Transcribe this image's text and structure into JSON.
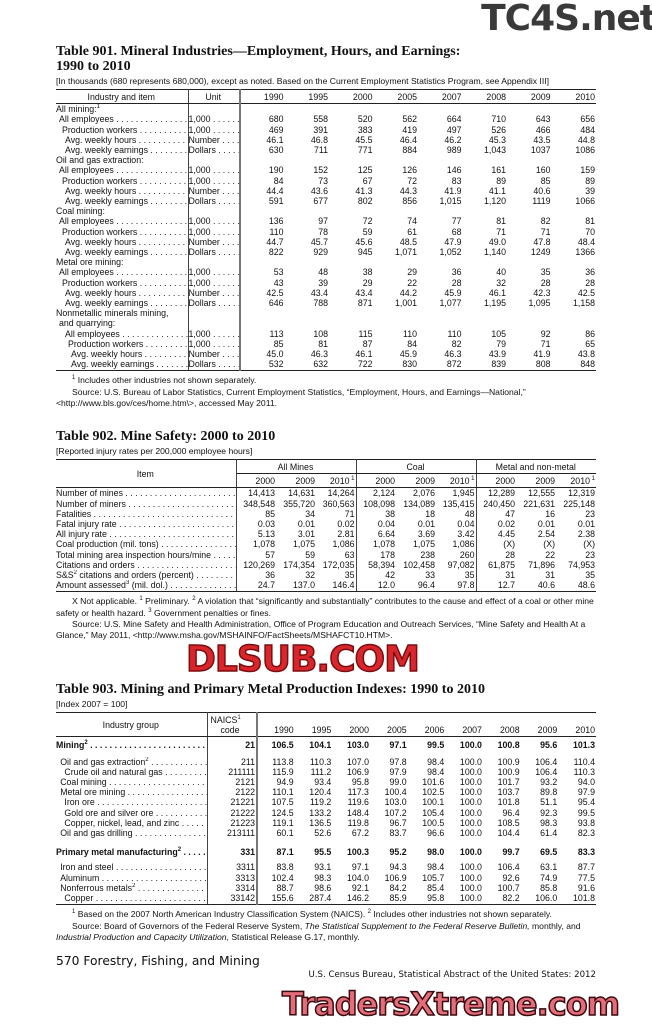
{
  "watermarks": {
    "top": "TC4S.net",
    "middle": "DLSUB.COM",
    "bottom": "TradersXtreme.com"
  },
  "table901": {
    "title_line1": "Table 901. Mineral Industries—Employment, Hours, and Earnings:",
    "title_line2": "1990 to 2010",
    "note": "[In thousands (680 represents 680,000), except as noted. Based on the Current Employment Statistics Program, see Appendix III]",
    "headers": {
      "item": "Industry and item",
      "unit": "Unit",
      "years": [
        "1990",
        "1995",
        "2000",
        "2005",
        "2007",
        "2008",
        "2009",
        "2010"
      ]
    },
    "rows": [
      {
        "label": "All mining:",
        "sup": "1",
        "level": 0
      },
      {
        "label": "All employees",
        "unit": "1,000",
        "level": 1,
        "values": [
          "680",
          "558",
          "520",
          "562",
          "664",
          "710",
          "643",
          "656"
        ]
      },
      {
        "label": "Production workers",
        "unit": "1,000",
        "level": 2,
        "values": [
          "469",
          "391",
          "383",
          "419",
          "497",
          "526",
          "466",
          "484"
        ]
      },
      {
        "label": "Avg. weekly hours",
        "unit": "Number",
        "level": 3,
        "values": [
          "46.1",
          "46.8",
          "45.5",
          "46.4",
          "46.2",
          "45.3",
          "43.5",
          "44.8"
        ]
      },
      {
        "label": "Avg. weekly earnings",
        "unit": "Dollars",
        "level": 3,
        "values": [
          "630",
          "711",
          "771",
          "884",
          "989",
          "1,043",
          "1037",
          "1086"
        ]
      },
      {
        "label": "Oil and gas extraction:",
        "level": 0
      },
      {
        "label": "All employees",
        "unit": "1,000",
        "level": 1,
        "values": [
          "190",
          "152",
          "125",
          "126",
          "146",
          "161",
          "160",
          "159"
        ]
      },
      {
        "label": "Production workers",
        "unit": "1,000",
        "level": 2,
        "values": [
          "84",
          "73",
          "67",
          "72",
          "83",
          "89",
          "85",
          "89"
        ]
      },
      {
        "label": "Avg. weekly hours",
        "unit": "Number",
        "level": 3,
        "values": [
          "44.4",
          "43.6",
          "41.3",
          "44.3",
          "41.9",
          "41.1",
          "40.6",
          "39"
        ]
      },
      {
        "label": "Avg. weekly earnings",
        "unit": "Dollars",
        "level": 3,
        "values": [
          "591",
          "677",
          "802",
          "856",
          "1,015",
          "1,120",
          "1119",
          "1066"
        ]
      },
      {
        "label": "Coal mining:",
        "level": 0
      },
      {
        "label": "All employees",
        "unit": "1,000",
        "level": 1,
        "values": [
          "136",
          "97",
          "72",
          "74",
          "77",
          "81",
          "82",
          "81"
        ]
      },
      {
        "label": "Production workers",
        "unit": "1,000",
        "level": 2,
        "values": [
          "110",
          "78",
          "59",
          "61",
          "68",
          "71",
          "71",
          "70"
        ]
      },
      {
        "label": "Avg. weekly hours",
        "unit": "Number",
        "level": 3,
        "values": [
          "44.7",
          "45.7",
          "45.6",
          "48.5",
          "47.9",
          "49.0",
          "47.8",
          "48.4"
        ]
      },
      {
        "label": "Avg. weekly earnings",
        "unit": "Dollars",
        "level": 3,
        "values": [
          "822",
          "929",
          "945",
          "1,071",
          "1,052",
          "1,140",
          "1249",
          "1366"
        ]
      },
      {
        "label": "Metal ore mining:",
        "level": 0
      },
      {
        "label": "All employees",
        "unit": "1,000",
        "level": 1,
        "values": [
          "53",
          "48",
          "38",
          "29",
          "36",
          "40",
          "35",
          "36"
        ]
      },
      {
        "label": "Production workers",
        "unit": "1,000",
        "level": 2,
        "values": [
          "43",
          "39",
          "29",
          "22",
          "28",
          "32",
          "28",
          "28"
        ]
      },
      {
        "label": "Avg. weekly hours",
        "unit": "Number",
        "level": 3,
        "values": [
          "42.5",
          "43.4",
          "43.4",
          "44.2",
          "45.9",
          "46.1",
          "42.3",
          "42.5"
        ]
      },
      {
        "label": "Avg. weekly earnings",
        "unit": "Dollars",
        "level": 3,
        "values": [
          "646",
          "788",
          "871",
          "1,001",
          "1,077",
          "1,195",
          "1,095",
          "1,158"
        ]
      },
      {
        "label": "Nonmetallic minerals mining,",
        "level": 0
      },
      {
        "label": "and quarrying:",
        "level": 1
      },
      {
        "label": "All employees",
        "unit": "1,000",
        "level": 3,
        "values": [
          "113",
          "108",
          "115",
          "110",
          "110",
          "105",
          "92",
          "86"
        ]
      },
      {
        "label": "Production workers",
        "unit": "1,000",
        "level": 4,
        "values": [
          "85",
          "81",
          "87",
          "84",
          "82",
          "79",
          "71",
          "65"
        ]
      },
      {
        "label": "Avg. weekly hours",
        "unit": "Number",
        "level": 5,
        "values": [
          "45.0",
          "46.3",
          "46.1",
          "45.9",
          "46.3",
          "43.9",
          "41.9",
          "43.8"
        ]
      },
      {
        "label": "Avg. weekly earnings",
        "unit": "Dollars",
        "level": 5,
        "values": [
          "532",
          "632",
          "722",
          "830",
          "872",
          "839",
          "808",
          "848"
        ]
      }
    ],
    "footnote1": "Includes other industries not shown separately.",
    "footnote1_sup": "1",
    "source": "Source: U.S. Bureau of Labor Statistics, Current Employment Statistics, “Employment, Hours, and Earnings—National,” <http://www.bls.gov/ces/home.htm\\>, accessed May 2011."
  },
  "table902": {
    "title": "Table 902. Mine Safety: 2000 to 2010",
    "note": "[Reported injury rates per 200,000 employee hours]",
    "headers": {
      "item": "Item",
      "groups": [
        "All Mines",
        "Coal",
        "Metal and non-metal"
      ],
      "years": [
        "2000",
        "2009",
        "2010"
      ],
      "year_sup": "1"
    },
    "rows": [
      {
        "label": "Number of mines",
        "values": [
          "14,413",
          "14,631",
          "14,264",
          "2,124",
          "2,076",
          "1,945",
          "12,289",
          "12,555",
          "12,319"
        ]
      },
      {
        "label": "Number of miners",
        "values": [
          "348,548",
          "355,720",
          "360,563",
          "108,098",
          "134,089",
          "135,415",
          "240,450",
          "221,631",
          "225,148"
        ]
      },
      {
        "label": "Fatalities",
        "values": [
          "85",
          "34",
          "71",
          "38",
          "18",
          "48",
          "47",
          "16",
          "23"
        ]
      },
      {
        "label": "Fatal injury rate",
        "values": [
          "0.03",
          "0.01",
          "0.02",
          "0.04",
          "0.01",
          "0.04",
          "0.02",
          "0.01",
          "0.01"
        ]
      },
      {
        "label": "All injury rate",
        "values": [
          "5.13",
          "3.01",
          "2.81",
          "6.64",
          "3.69",
          "3.42",
          "4.45",
          "2.54",
          "2.38"
        ]
      },
      {
        "label": "Coal production (mil. tons)",
        "values": [
          "1,078",
          "1,075",
          "1,086",
          "1,078",
          "1,075",
          "1,086",
          "(X)",
          "(X)",
          "(X)"
        ]
      },
      {
        "label": "Total mining area inspection hours/mine",
        "values": [
          "57",
          "59",
          "63",
          "178",
          "238",
          "260",
          "28",
          "22",
          "23"
        ]
      },
      {
        "label": "Citations and orders",
        "values": [
          "120,269",
          "174,354",
          "172,035",
          "58,394",
          "102,458",
          "97,082",
          "61,875",
          "71,896",
          "74,953"
        ]
      },
      {
        "label": "S&S",
        "sup": "2",
        "label_rest": " citations and orders (percent)",
        "values": [
          "36",
          "32",
          "35",
          "42",
          "33",
          "35",
          "31",
          "31",
          "35"
        ]
      },
      {
        "label": "Amount assessed",
        "sup": "3",
        "label_rest": " (mil. dol.)",
        "values": [
          "24.7",
          "137.0",
          "146.4",
          "12.0",
          "96.4",
          "97.8",
          "12.7",
          "40.6",
          "48.6"
        ]
      }
    ],
    "footnote_a": "X Not applicable.",
    "footnote_1": "Preliminary.",
    "footnote_2": "A violation that “significantly and substantially” contributes to the cause and effect of a coal or other mine safety or health hazard.",
    "footnote_3": "Government penalties or fines.",
    "source": "Source: U.S. Mine Safety and Health Administration, Office of Program Education and Outreach Services, “Mine Safety and Health At a Glance,” May 2011, <http://www.msha.gov/MSHAINFO/FactSheets/MSHAFCT10.HTM>."
  },
  "table903": {
    "title": "Table 903. Mining and Primary Metal Production Indexes: 1990 to 2010",
    "note": "[Index 2007 = 100]",
    "headers": {
      "item": "Industry group",
      "code_line1": "NAICS",
      "code_sup": "1",
      "code_line2": "code",
      "years": [
        "1990",
        "1995",
        "2000",
        "2005",
        "2006",
        "2007",
        "2008",
        "2009",
        "2010"
      ]
    },
    "rows": [
      {
        "label": "Mining",
        "sup": "2",
        "code": "21",
        "bold": true,
        "level": 0,
        "values": [
          "106.5",
          "104.1",
          "103.0",
          "97.1",
          "99.5",
          "100.0",
          "100.8",
          "95.6",
          "101.3"
        ]
      },
      {
        "label": "Oil and gas extraction",
        "sup": "2",
        "code": "211",
        "level": 1,
        "values": [
          "113.8",
          "110.3",
          "107.0",
          "97.8",
          "98.4",
          "100.0",
          "100.9",
          "106.4",
          "110.4"
        ]
      },
      {
        "label": "Crude oil and natural gas",
        "code": "211111",
        "level": 2,
        "values": [
          "115.9",
          "111.2",
          "106.9",
          "97.9",
          "98.4",
          "100.0",
          "100.9",
          "106.4",
          "110.3"
        ]
      },
      {
        "label": "Coal mining",
        "code": "2121",
        "level": 1,
        "values": [
          "94.9",
          "93.4",
          "95.8",
          "99.0",
          "101.6",
          "100.0",
          "101.7",
          "93.2",
          "94.0"
        ]
      },
      {
        "label": "Metal ore mining",
        "code": "2122",
        "level": 1,
        "values": [
          "110.1",
          "120.4",
          "117.3",
          "100.4",
          "102.5",
          "100.0",
          "103.7",
          "89.8",
          "97.9"
        ]
      },
      {
        "label": "Iron ore",
        "code": "21221",
        "level": 2,
        "values": [
          "107.5",
          "119.2",
          "119.6",
          "103.0",
          "100.1",
          "100.0",
          "101.8",
          "51.1",
          "95.4"
        ]
      },
      {
        "label": "Gold ore and silver ore",
        "code": "21222",
        "level": 2,
        "values": [
          "124.5",
          "133.2",
          "148.4",
          "107.2",
          "105.4",
          "100.0",
          "96.4",
          "92.3",
          "99.5"
        ]
      },
      {
        "label": "Copper, nickel, lead, and zinc",
        "code": "21223",
        "level": 2,
        "values": [
          "119.1",
          "136.5",
          "119.8",
          "96.7",
          "100.5",
          "100.0",
          "108.5",
          "98.3",
          "93.8"
        ]
      },
      {
        "label": "Oil and gas drilling",
        "code": "213111",
        "level": 1,
        "values": [
          "60.1",
          "52.6",
          "67.2",
          "83.7",
          "96.6",
          "100.0",
          "104.4",
          "61.4",
          "82.3"
        ]
      },
      {
        "label": "Primary metal manufacturing",
        "sup": "2",
        "code": "331",
        "bold": true,
        "level": 0,
        "values": [
          "87.1",
          "95.5",
          "100.3",
          "95.2",
          "98.0",
          "100.0",
          "99.7",
          "69.5",
          "83.3"
        ]
      },
      {
        "label": "Iron and steel",
        "code": "3311",
        "level": 1,
        "values": [
          "83.8",
          "93.1",
          "97.1",
          "94.3",
          "98.4",
          "100.0",
          "106.4",
          "63.1",
          "87.7"
        ]
      },
      {
        "label": "Aluminum",
        "code": "3313",
        "level": 1,
        "values": [
          "102.4",
          "98.3",
          "104.0",
          "106.9",
          "105.7",
          "100.0",
          "92.6",
          "74.9",
          "77.5"
        ]
      },
      {
        "label": "Nonferrous metals",
        "sup": "2",
        "code": "3314",
        "level": 1,
        "values": [
          "88.7",
          "98.6",
          "92.1",
          "84.2",
          "85.4",
          "100.0",
          "100.7",
          "85.8",
          "91.6"
        ]
      },
      {
        "label": "Copper",
        "code": "33142",
        "level": 2,
        "values": [
          "155.6",
          "287.4",
          "146.2",
          "85.9",
          "95.8",
          "100.0",
          "82.2",
          "106.0",
          "101.8"
        ]
      }
    ],
    "footnote_1": "Based on the 2007 North American Industry Classification System (NAICS).",
    "footnote_2": "Includes other industries not shown separately.",
    "source_a": "Source: Board of Governors of the Federal Reserve System, ",
    "source_b": "The Statistical Supplement to the Federal Reserve Bulletin,",
    "source_c": " monthly, and ",
    "source_d": "Industrial Production and Capacity Utilization",
    "source_e": ", Statistical Release G.17, monthly."
  },
  "footer": {
    "page": "570  Forestry, Fishing, and Mining",
    "publication": "U.S. Census Bureau, Statistical Abstract of the United States: 2012"
  }
}
